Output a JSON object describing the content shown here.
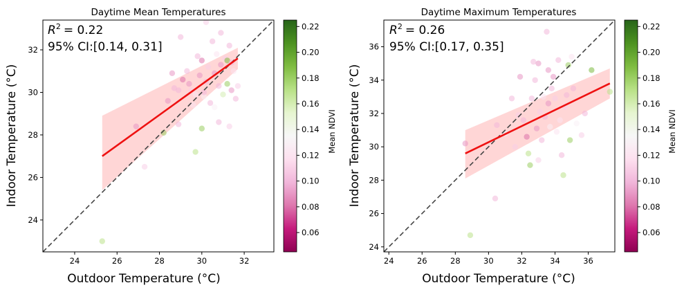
{
  "chart_data": [
    {
      "type": "scatter",
      "title": "Daytime Mean Temperatures",
      "xlabel": "Outdoor Temperature (°C)",
      "ylabel": "Indoor Temperature (°C)",
      "xlim": [
        22.5,
        33.4
      ],
      "ylim": [
        22.5,
        33.4
      ],
      "xticks": [
        24,
        26,
        28,
        30,
        32
      ],
      "yticks": [
        24,
        26,
        28,
        30,
        32
      ],
      "annotation_r2": "= 0.22",
      "annotation_ci": "95% CI:[0.14, 0.31]",
      "colorbar_label": "Mean NDVI",
      "colorbar_ticks": [
        0.06,
        0.08,
        0.1,
        0.12,
        0.14,
        0.16,
        0.18,
        0.2,
        0.22
      ],
      "colorbar_range": [
        0.045,
        0.225
      ],
      "identity_line": true,
      "regression": {
        "x": [
          25.3,
          31.7
        ],
        "y": [
          27.0,
          31.6
        ]
      },
      "ci_band": {
        "x": [
          25.3,
          31.7
        ],
        "upper": [
          28.9,
          32.1
        ],
        "lower": [
          25.4,
          31.1
        ]
      },
      "points": [
        {
          "x": 25.3,
          "y": 23.0,
          "ndvi": 0.17
        },
        {
          "x": 27.3,
          "y": 26.5,
          "ndvi": 0.11
        },
        {
          "x": 26.9,
          "y": 28.4,
          "ndvi": 0.09
        },
        {
          "x": 28.2,
          "y": 28.1,
          "ndvi": 0.18
        },
        {
          "x": 28.9,
          "y": 28.5,
          "ndvi": 0.1
        },
        {
          "x": 29.7,
          "y": 27.2,
          "ndvi": 0.17
        },
        {
          "x": 30.0,
          "y": 28.3,
          "ndvi": 0.18
        },
        {
          "x": 30.8,
          "y": 28.6,
          "ndvi": 0.1
        },
        {
          "x": 31.3,
          "y": 28.4,
          "ndvi": 0.11
        },
        {
          "x": 28.4,
          "y": 29.6,
          "ndvi": 0.09
        },
        {
          "x": 28.7,
          "y": 30.2,
          "ndvi": 0.1
        },
        {
          "x": 28.6,
          "y": 30.9,
          "ndvi": 0.09
        },
        {
          "x": 29.1,
          "y": 30.6,
          "ndvi": 0.08
        },
        {
          "x": 29.3,
          "y": 31.0,
          "ndvi": 0.1
        },
        {
          "x": 29.5,
          "y": 30.1,
          "ndvi": 0.11
        },
        {
          "x": 29.6,
          "y": 29.4,
          "ndvi": 0.12
        },
        {
          "x": 29.8,
          "y": 31.7,
          "ndvi": 0.1
        },
        {
          "x": 29.9,
          "y": 30.8,
          "ndvi": 0.09
        },
        {
          "x": 30.0,
          "y": 31.5,
          "ndvi": 0.08
        },
        {
          "x": 30.1,
          "y": 29.8,
          "ndvi": 0.13
        },
        {
          "x": 30.2,
          "y": 30.5,
          "ndvi": 0.1
        },
        {
          "x": 30.3,
          "y": 31.2,
          "ndvi": 0.11
        },
        {
          "x": 30.4,
          "y": 29.5,
          "ndvi": 0.1
        },
        {
          "x": 30.5,
          "y": 32.4,
          "ndvi": 0.1
        },
        {
          "x": 30.6,
          "y": 30.9,
          "ndvi": 0.09
        },
        {
          "x": 30.7,
          "y": 31.8,
          "ndvi": 0.12
        },
        {
          "x": 30.8,
          "y": 30.3,
          "ndvi": 0.1
        },
        {
          "x": 30.9,
          "y": 31.3,
          "ndvi": 0.09
        },
        {
          "x": 31.0,
          "y": 29.9,
          "ndvi": 0.16
        },
        {
          "x": 31.1,
          "y": 31.6,
          "ndvi": 0.11
        },
        {
          "x": 31.2,
          "y": 30.4,
          "ndvi": 0.18
        },
        {
          "x": 31.3,
          "y": 32.2,
          "ndvi": 0.1
        },
        {
          "x": 31.4,
          "y": 30.1,
          "ndvi": 0.09
        },
        {
          "x": 31.5,
          "y": 31.0,
          "ndvi": 0.12
        },
        {
          "x": 31.6,
          "y": 29.7,
          "ndvi": 0.1
        },
        {
          "x": 31.7,
          "y": 30.3,
          "ndvi": 0.11
        },
        {
          "x": 29.0,
          "y": 32.6,
          "ndvi": 0.1
        },
        {
          "x": 30.2,
          "y": 33.3,
          "ndvi": 0.11
        },
        {
          "x": 30.9,
          "y": 32.8,
          "ndvi": 0.1
        },
        {
          "x": 31.2,
          "y": 31.5,
          "ndvi": 0.19
        },
        {
          "x": 29.4,
          "y": 30.4,
          "ndvi": 0.09
        },
        {
          "x": 28.9,
          "y": 30.1,
          "ndvi": 0.1
        },
        {
          "x": 29.7,
          "y": 29.9,
          "ndvi": 0.12
        },
        {
          "x": 30.6,
          "y": 29.3,
          "ndvi": 0.13
        },
        {
          "x": 30.1,
          "y": 30.0,
          "ndvi": 0.1
        },
        {
          "x": 31.4,
          "y": 31.4,
          "ndvi": 0.1
        }
      ]
    },
    {
      "type": "scatter",
      "title": "Daytime Maximum Temperatures",
      "xlabel": "Outdoor Temperature (°C)",
      "ylabel": "Indoor Temperature (°C)",
      "xlim": [
        23.7,
        37.6
      ],
      "ylim": [
        23.7,
        37.6
      ],
      "xticks": [
        24,
        26,
        28,
        30,
        32,
        34,
        36
      ],
      "yticks": [
        24,
        26,
        28,
        30,
        32,
        34,
        36
      ],
      "annotation_r2": "= 0.26",
      "annotation_ci": "95% CI:[0.17, 0.35]",
      "colorbar_label": "Mean NDVI",
      "colorbar_ticks": [
        0.06,
        0.08,
        0.1,
        0.12,
        0.14,
        0.16,
        0.18,
        0.2,
        0.22
      ],
      "colorbar_range": [
        0.045,
        0.225
      ],
      "identity_line": true,
      "regression": {
        "x": [
          28.6,
          37.3
        ],
        "y": [
          29.6,
          33.8
        ]
      },
      "ci_band": {
        "x": [
          28.6,
          37.3
        ],
        "upper": [
          31.0,
          34.7
        ],
        "lower": [
          28.1,
          32.9
        ]
      },
      "points": [
        {
          "x": 28.9,
          "y": 24.7,
          "ndvi": 0.17
        },
        {
          "x": 30.4,
          "y": 26.9,
          "ndvi": 0.1
        },
        {
          "x": 28.6,
          "y": 30.2,
          "ndvi": 0.09
        },
        {
          "x": 30.5,
          "y": 31.3,
          "ndvi": 0.1
        },
        {
          "x": 31.0,
          "y": 30.8,
          "ndvi": 0.13
        },
        {
          "x": 31.6,
          "y": 30.0,
          "ndvi": 0.11
        },
        {
          "x": 31.9,
          "y": 34.2,
          "ndvi": 0.09
        },
        {
          "x": 32.1,
          "y": 31.6,
          "ndvi": 0.1
        },
        {
          "x": 32.3,
          "y": 30.6,
          "ndvi": 0.08
        },
        {
          "x": 32.4,
          "y": 29.6,
          "ndvi": 0.17
        },
        {
          "x": 32.5,
          "y": 28.9,
          "ndvi": 0.18
        },
        {
          "x": 32.6,
          "y": 32.9,
          "ndvi": 0.1
        },
        {
          "x": 32.7,
          "y": 35.1,
          "ndvi": 0.1
        },
        {
          "x": 32.9,
          "y": 31.1,
          "ndvi": 0.09
        },
        {
          "x": 33.0,
          "y": 35.0,
          "ndvi": 0.09
        },
        {
          "x": 33.1,
          "y": 32.1,
          "ndvi": 0.11
        },
        {
          "x": 33.2,
          "y": 30.4,
          "ndvi": 0.1
        },
        {
          "x": 33.3,
          "y": 33.0,
          "ndvi": 0.12
        },
        {
          "x": 33.4,
          "y": 31.8,
          "ndvi": 0.1
        },
        {
          "x": 33.5,
          "y": 36.9,
          "ndvi": 0.1
        },
        {
          "x": 33.6,
          "y": 32.6,
          "ndvi": 0.09
        },
        {
          "x": 33.7,
          "y": 31.2,
          "ndvi": 0.13
        },
        {
          "x": 33.8,
          "y": 33.5,
          "ndvi": 0.1
        },
        {
          "x": 33.9,
          "y": 34.2,
          "ndvi": 0.09
        },
        {
          "x": 34.0,
          "y": 32.9,
          "ndvi": 0.11
        },
        {
          "x": 34.1,
          "y": 30.9,
          "ndvi": 0.12
        },
        {
          "x": 34.2,
          "y": 35.2,
          "ndvi": 0.1
        },
        {
          "x": 34.3,
          "y": 31.6,
          "ndvi": 0.12
        },
        {
          "x": 34.4,
          "y": 29.5,
          "ndvi": 0.1
        },
        {
          "x": 34.5,
          "y": 28.3,
          "ndvi": 0.17
        },
        {
          "x": 34.6,
          "y": 32.4,
          "ndvi": 0.11
        },
        {
          "x": 34.8,
          "y": 34.9,
          "ndvi": 0.18
        },
        {
          "x": 34.9,
          "y": 30.4,
          "ndvi": 0.18
        },
        {
          "x": 35.1,
          "y": 33.5,
          "ndvi": 0.1
        },
        {
          "x": 35.3,
          "y": 31.4,
          "ndvi": 0.13
        },
        {
          "x": 35.6,
          "y": 30.7,
          "ndvi": 0.11
        },
        {
          "x": 35.8,
          "y": 32.0,
          "ndvi": 0.1
        },
        {
          "x": 36.2,
          "y": 34.6,
          "ndvi": 0.19
        },
        {
          "x": 37.3,
          "y": 33.3,
          "ndvi": 0.17
        },
        {
          "x": 32.8,
          "y": 34.0,
          "ndvi": 0.1
        },
        {
          "x": 33.6,
          "y": 34.6,
          "ndvi": 0.09
        },
        {
          "x": 31.4,
          "y": 32.9,
          "ndvi": 0.1
        },
        {
          "x": 31.8,
          "y": 31.9,
          "ndvi": 0.11
        },
        {
          "x": 34.7,
          "y": 33.1,
          "ndvi": 0.1
        },
        {
          "x": 33.0,
          "y": 29.2,
          "ndvi": 0.11
        },
        {
          "x": 35.0,
          "y": 35.4,
          "ndvi": 0.12
        }
      ]
    }
  ]
}
